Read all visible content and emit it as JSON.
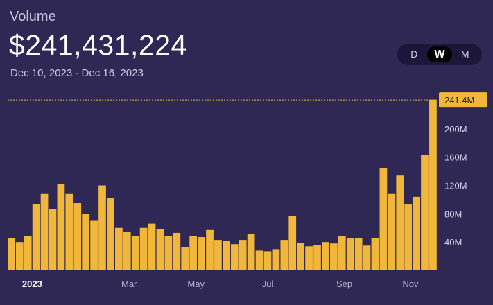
{
  "header": {
    "label": "Volume",
    "value": "$241,431,224",
    "date_range": "Dec 10, 2023 - Dec 16, 2023"
  },
  "period_toggle": {
    "options": [
      "D",
      "W",
      "M"
    ],
    "selected": "W"
  },
  "colors": {
    "background": "#2f2855",
    "bar": "#f0b73a",
    "toggle_bg": "#1c1739",
    "last_value_line": "#f0b73a"
  },
  "chart_data": {
    "type": "bar",
    "title": "",
    "xlabel": "",
    "ylabel": "",
    "ylim": [
      0,
      250
    ],
    "unit": "M",
    "y_ticks": [
      "40M",
      "80M",
      "120M",
      "160M",
      "200M"
    ],
    "x_ticks": [
      "2023",
      "Mar",
      "May",
      "Jul",
      "Sep",
      "Nov"
    ],
    "last_value_label": "241.4M",
    "grid": false,
    "values": [
      46,
      40,
      48,
      94,
      108,
      87,
      122,
      108,
      95,
      80,
      70,
      120,
      102,
      60,
      54,
      48,
      60,
      66,
      58,
      49,
      53,
      33,
      49,
      47,
      57,
      43,
      42,
      37,
      43,
      51,
      28,
      27,
      30,
      43,
      77,
      39,
      34,
      36,
      40,
      38,
      49,
      45,
      46,
      35,
      46,
      145,
      108,
      134,
      93,
      104,
      163,
      241.4
    ]
  }
}
